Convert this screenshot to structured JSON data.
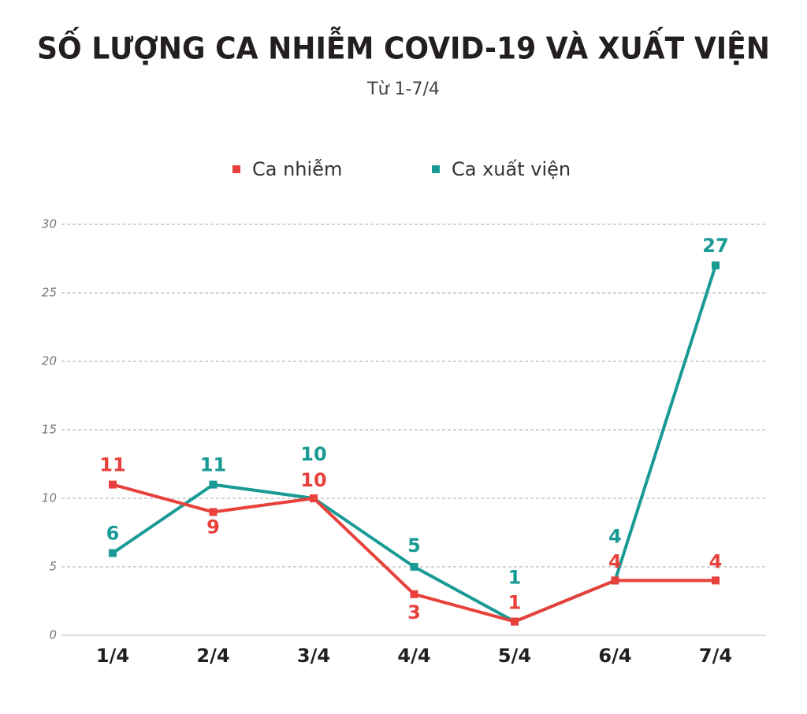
{
  "chart_data": {
    "type": "line",
    "title": "SỐ LƯỢNG CA NHIỄM COVID-19 VÀ XUẤT VIỆN",
    "subtitle": "Từ 1-7/4",
    "categories": [
      "1/4",
      "2/4",
      "3/4",
      "4/4",
      "5/4",
      "6/4",
      "7/4"
    ],
    "series": [
      {
        "name": "Ca nhiễm",
        "color": "#e8413c",
        "values": [
          11,
          9,
          10,
          3,
          1,
          4,
          4
        ]
      },
      {
        "name": "Ca xuất viện",
        "color": "#1a9a94",
        "values": [
          6,
          11,
          10,
          5,
          1,
          4,
          27
        ]
      }
    ],
    "ylim": [
      0,
      30
    ],
    "yticks": [
      0,
      5,
      10,
      15,
      20,
      25,
      30
    ],
    "grid": true
  }
}
